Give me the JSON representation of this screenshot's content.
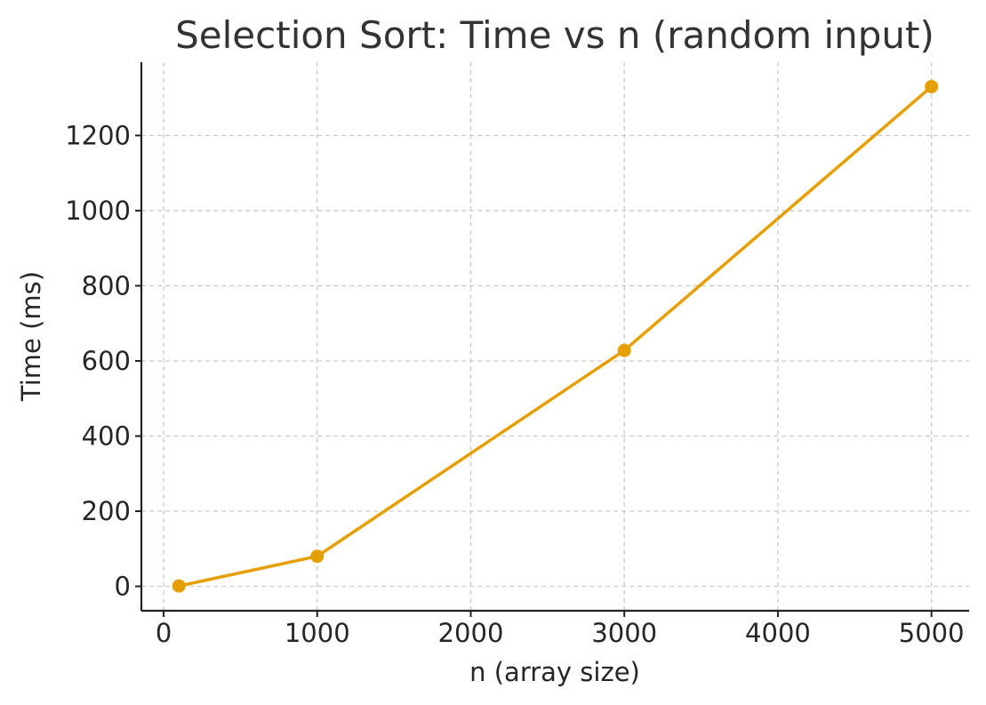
{
  "chart_data": {
    "type": "line",
    "title": "Selection Sort: Time vs n (random input)",
    "xlabel": "n (array size)",
    "ylabel": "Time (ms)",
    "xlim": [
      -145,
      5245
    ],
    "ylim": [
      -65,
      1395
    ],
    "xticks": [
      0,
      1000,
      2000,
      3000,
      4000,
      5000
    ],
    "yticks": [
      0,
      200,
      400,
      600,
      800,
      1000,
      1200
    ],
    "grid": true,
    "series": [
      {
        "color": "#E69F00",
        "marker": "circle",
        "x": [
          100,
          1000,
          3000,
          5000
        ],
        "y": [
          1,
          80,
          628,
          1330
        ]
      }
    ]
  }
}
